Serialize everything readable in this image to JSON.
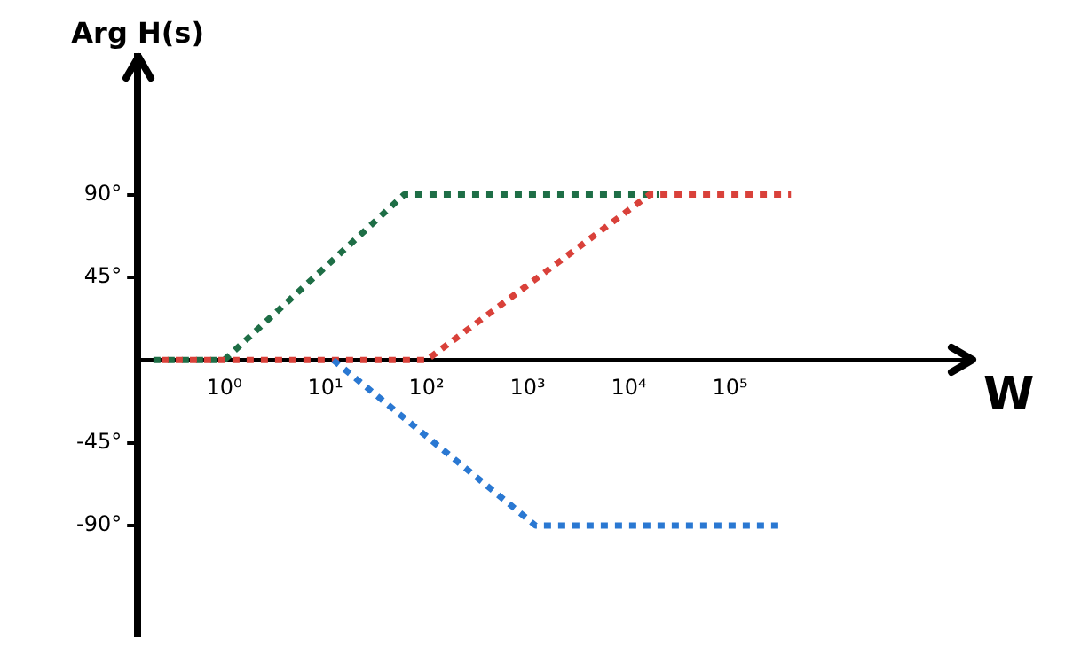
{
  "chart_data": {
    "type": "line",
    "ylabel": "Arg H(s)",
    "xlabel": "W",
    "log": "x",
    "xlim": [
      0.14,
      25000000
    ],
    "xticks": [
      {
        "value": 1,
        "label": "10⁰"
      },
      {
        "value": 10,
        "label": "10¹"
      },
      {
        "value": 100,
        "label": "10²"
      },
      {
        "value": 1000,
        "label": "10³"
      },
      {
        "value": 10000,
        "label": "10⁴"
      },
      {
        "value": 100000,
        "label": "10⁵"
      }
    ],
    "ylim": [
      -150,
      165
    ],
    "yticks": [
      {
        "value": 90,
        "label": "90°"
      },
      {
        "value": 45,
        "label": "45°"
      },
      {
        "value": -45,
        "label": "-45°"
      },
      {
        "value": -90,
        "label": "-90°"
      }
    ],
    "grid": false,
    "legend": false,
    "marker": "none",
    "line_style": "dashed",
    "series": [
      {
        "color": "#1e6e46",
        "x": [
          0.2,
          1,
          60,
          20000
        ],
        "values": [
          0,
          0,
          90,
          90
        ]
      },
      {
        "color": "#d9413a",
        "x": [
          0.24,
          100,
          16000,
          400000
        ],
        "values": [
          0,
          0,
          90,
          90
        ]
      },
      {
        "color": "#2a78d2",
        "x": [
          12,
          1200,
          300000
        ],
        "values": [
          0,
          -90,
          -90
        ]
      }
    ]
  }
}
